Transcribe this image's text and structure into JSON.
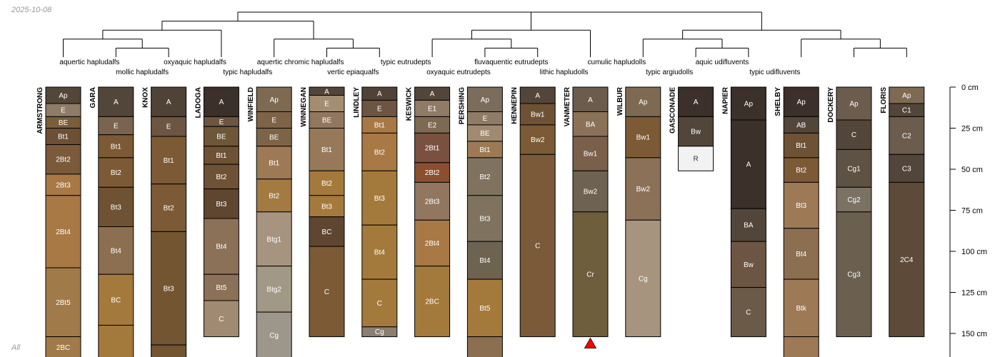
{
  "date_stamp": "2025-10-08",
  "footer_note": "All",
  "depth_axis": {
    "max_cm": 165,
    "ticks": [
      0,
      25,
      50,
      75,
      100,
      125,
      150
    ],
    "unit_label": "cm"
  },
  "taxa": [
    {
      "label": "aquertic hapludalfs",
      "row": 1
    },
    {
      "label": "mollic hapludalfs",
      "row": 2
    },
    {
      "label": "oxyaquic hapludalfs",
      "row": 1
    },
    {
      "label": "typic hapludalfs",
      "row": 2
    },
    {
      "label": "aquertic chromic hapludalfs",
      "row": 1
    },
    {
      "label": "vertic epiaqualfs",
      "row": 2
    },
    {
      "label": "typic eutrudepts",
      "row": 1
    },
    {
      "label": "oxyaquic eutrudepts",
      "row": 2
    },
    {
      "label": "fluvaquentic eutrudepts",
      "row": 1
    },
    {
      "label": "lithic hapludolls",
      "row": 2
    },
    {
      "label": "cumulic hapludolls",
      "row": 1
    },
    {
      "label": "typic argiudolls",
      "row": 2
    },
    {
      "label": "aquic udifluvents",
      "row": 1
    },
    {
      "label": "typic udifluvents",
      "row": 2
    }
  ],
  "profiles": [
    {
      "name": "ARMSTRONG",
      "horizons": [
        {
          "name": "Ap",
          "top": 0,
          "bottom": 10,
          "color": "#534739"
        },
        {
          "name": "E",
          "top": 10,
          "bottom": 18,
          "color": "#8f7b66"
        },
        {
          "name": "BE",
          "top": 18,
          "bottom": 25,
          "color": "#7a5e3c"
        },
        {
          "name": "Bt1",
          "top": 25,
          "bottom": 35,
          "color": "#6c4f35"
        },
        {
          "name": "2Bt2",
          "top": 35,
          "bottom": 53,
          "color": "#7a5a3a"
        },
        {
          "name": "2Bt3",
          "top": 53,
          "bottom": 66,
          "color": "#a87845"
        },
        {
          "name": "2Bt4",
          "top": 66,
          "bottom": 110,
          "color": "#a87845"
        },
        {
          "name": "2Bt5",
          "top": 110,
          "bottom": 152,
          "color": "#a07a48"
        },
        {
          "name": "2BC",
          "top": 152,
          "bottom": 165,
          "color": "#a07a48"
        }
      ]
    },
    {
      "name": "GARA",
      "horizons": [
        {
          "name": "A",
          "top": 0,
          "bottom": 18,
          "color": "#52463a"
        },
        {
          "name": "E",
          "top": 18,
          "bottom": 29,
          "color": "#7a6450"
        },
        {
          "name": "Bt1",
          "top": 29,
          "bottom": 43,
          "color": "#7b5a35"
        },
        {
          "name": "Bt2",
          "top": 43,
          "bottom": 61,
          "color": "#7b5a35"
        },
        {
          "name": "Bt3",
          "top": 61,
          "bottom": 85,
          "color": "#6e5233"
        },
        {
          "name": "Bt4",
          "top": 85,
          "bottom": 114,
          "color": "#8c6f50"
        },
        {
          "name": "BC",
          "top": 114,
          "bottom": 145,
          "color": "#a47a3c"
        },
        {
          "name": "",
          "top": 145,
          "bottom": 165,
          "color": "#a47a3c"
        }
      ]
    },
    {
      "name": "KNOX",
      "horizons": [
        {
          "name": "A",
          "top": 0,
          "bottom": 18,
          "color": "#4f4338"
        },
        {
          "name": "E",
          "top": 18,
          "bottom": 30,
          "color": "#6c5542"
        },
        {
          "name": "Bt1",
          "top": 30,
          "bottom": 59,
          "color": "#7b5a35"
        },
        {
          "name": "Bt2",
          "top": 59,
          "bottom": 88,
          "color": "#7b5a35"
        },
        {
          "name": "Bt3",
          "top": 88,
          "bottom": 157,
          "color": "#735532"
        },
        {
          "name": "",
          "top": 157,
          "bottom": 165,
          "color": "#735532"
        }
      ]
    },
    {
      "name": "LADOGA",
      "horizons": [
        {
          "name": "A",
          "top": 0,
          "bottom": 18,
          "color": "#3b302a"
        },
        {
          "name": "E",
          "top": 18,
          "bottom": 24,
          "color": "#6c5542"
        },
        {
          "name": "BE",
          "top": 24,
          "bottom": 36,
          "color": "#6e5638"
        },
        {
          "name": "Bt1",
          "top": 36,
          "bottom": 47,
          "color": "#6e5235"
        },
        {
          "name": "Bt2",
          "top": 47,
          "bottom": 62,
          "color": "#6e5235"
        },
        {
          "name": "Bt3",
          "top": 62,
          "bottom": 80,
          "color": "#5e4630"
        },
        {
          "name": "Bt4",
          "top": 80,
          "bottom": 114,
          "color": "#8a7158"
        },
        {
          "name": "Bt5",
          "top": 114,
          "bottom": 130,
          "color": "#8a7158"
        },
        {
          "name": "C",
          "top": 130,
          "bottom": 152,
          "color": "#a08b72"
        }
      ]
    },
    {
      "name": "WINFIELD",
      "horizons": [
        {
          "name": "Ap",
          "top": 0,
          "bottom": 15,
          "color": "#7e6a52"
        },
        {
          "name": "E",
          "top": 15,
          "bottom": 25,
          "color": "#7e6446"
        },
        {
          "name": "BE",
          "top": 25,
          "bottom": 36,
          "color": "#7e6446"
        },
        {
          "name": "Bt1",
          "top": 36,
          "bottom": 56,
          "color": "#9d7a55"
        },
        {
          "name": "Bt2",
          "top": 56,
          "bottom": 76,
          "color": "#a27a42"
        },
        {
          "name": "Btg1",
          "top": 76,
          "bottom": 109,
          "color": "#a6947f"
        },
        {
          "name": "Btg2",
          "top": 109,
          "bottom": 137,
          "color": "#a29886"
        },
        {
          "name": "Cg",
          "top": 137,
          "bottom": 165,
          "color": "#9d968a"
        }
      ]
    },
    {
      "name": "WINNEGAN",
      "horizons": [
        {
          "name": "A",
          "top": 0,
          "bottom": 5,
          "color": "#52463a"
        },
        {
          "name": "E",
          "top": 5,
          "bottom": 15,
          "color": "#a38e71"
        },
        {
          "name": "BE",
          "top": 15,
          "bottom": 25,
          "color": "#917760"
        },
        {
          "name": "Bt1",
          "top": 25,
          "bottom": 51,
          "color": "#977959"
        },
        {
          "name": "Bt2",
          "top": 51,
          "bottom": 66,
          "color": "#a47a3c"
        },
        {
          "name": "Bt3",
          "top": 66,
          "bottom": 79,
          "color": "#a47a3c"
        },
        {
          "name": "BC",
          "top": 79,
          "bottom": 97,
          "color": "#5e4630"
        },
        {
          "name": "C",
          "top": 97,
          "bottom": 152,
          "color": "#7b5a35"
        }
      ]
    },
    {
      "name": "LINDLEY",
      "horizons": [
        {
          "name": "A",
          "top": 0,
          "bottom": 8,
          "color": "#4f4338"
        },
        {
          "name": "E",
          "top": 8,
          "bottom": 18,
          "color": "#6c5542"
        },
        {
          "name": "Bt1",
          "top": 18,
          "bottom": 28,
          "color": "#a87845"
        },
        {
          "name": "Bt2",
          "top": 28,
          "bottom": 51,
          "color": "#a87845"
        },
        {
          "name": "Bt3",
          "top": 51,
          "bottom": 84,
          "color": "#a47a3c"
        },
        {
          "name": "Bt4",
          "top": 84,
          "bottom": 117,
          "color": "#a47a3c"
        },
        {
          "name": "C",
          "top": 117,
          "bottom": 146,
          "color": "#a47a3c"
        },
        {
          "name": "Cg",
          "top": 146,
          "bottom": 152,
          "color": "#8c7e70"
        }
      ]
    },
    {
      "name": "KESWICK",
      "horizons": [
        {
          "name": "A",
          "top": 0,
          "bottom": 8,
          "color": "#52463a"
        },
        {
          "name": "E1",
          "top": 8,
          "bottom": 18,
          "color": "#8f7b66"
        },
        {
          "name": "E2",
          "top": 18,
          "bottom": 28,
          "color": "#7e6a52"
        },
        {
          "name": "2Bt1",
          "top": 28,
          "bottom": 46,
          "color": "#7a5040"
        },
        {
          "name": "2Bt2",
          "top": 46,
          "bottom": 58,
          "color": "#8b4e2e"
        },
        {
          "name": "2Bt3",
          "top": 58,
          "bottom": 81,
          "color": "#917760"
        },
        {
          "name": "2Bt4",
          "top": 81,
          "bottom": 109,
          "color": "#a87845"
        },
        {
          "name": "2BC",
          "top": 109,
          "bottom": 152,
          "color": "#a47a3c"
        }
      ]
    },
    {
      "name": "PERSHING",
      "horizons": [
        {
          "name": "Ap",
          "top": 0,
          "bottom": 15,
          "color": "#7b6c5c"
        },
        {
          "name": "E",
          "top": 15,
          "bottom": 23,
          "color": "#8f7b66"
        },
        {
          "name": "BE",
          "top": 23,
          "bottom": 33,
          "color": "#a08b72"
        },
        {
          "name": "Bt1",
          "top": 33,
          "bottom": 43,
          "color": "#9d7a55"
        },
        {
          "name": "Bt2",
          "top": 43,
          "bottom": 66,
          "color": "#7f7360"
        },
        {
          "name": "Bt3",
          "top": 66,
          "bottom": 94,
          "color": "#7f7360"
        },
        {
          "name": "Bt4",
          "top": 94,
          "bottom": 117,
          "color": "#6e6250"
        },
        {
          "name": "Bt5",
          "top": 117,
          "bottom": 152,
          "color": "#a47a3c"
        },
        {
          "name": "",
          "top": 152,
          "bottom": 165,
          "color": "#8c6f50"
        }
      ]
    },
    {
      "name": "HENNEPIN",
      "horizons": [
        {
          "name": "A",
          "top": 0,
          "bottom": 10,
          "color": "#52463a"
        },
        {
          "name": "Bw1",
          "top": 10,
          "bottom": 23,
          "color": "#6e5235"
        },
        {
          "name": "Bw2",
          "top": 23,
          "bottom": 41,
          "color": "#7b5a35"
        },
        {
          "name": "C",
          "top": 41,
          "bottom": 152,
          "color": "#7b5a3a"
        }
      ]
    },
    {
      "name": "VANMETER",
      "horizons": [
        {
          "name": "A",
          "top": 0,
          "bottom": 15,
          "color": "#6b5c4d"
        },
        {
          "name": "BA",
          "top": 15,
          "bottom": 30,
          "color": "#8a7158"
        },
        {
          "name": "Bw1",
          "top": 30,
          "bottom": 51,
          "color": "#7a5f4b"
        },
        {
          "name": "Bw2",
          "top": 51,
          "bottom": 76,
          "color": "#6e6250"
        },
        {
          "name": "Cr",
          "top": 76,
          "bottom": 152,
          "color": "#6e5e3c"
        }
      ]
    },
    {
      "name": "WILBUR",
      "horizons": [
        {
          "name": "Ap",
          "top": 0,
          "bottom": 18,
          "color": "#7e6a52"
        },
        {
          "name": "Bw1",
          "top": 18,
          "bottom": 43,
          "color": "#7b5a35"
        },
        {
          "name": "Bw2",
          "top": 43,
          "bottom": 81,
          "color": "#8c7159"
        },
        {
          "name": "Cg",
          "top": 81,
          "bottom": 152,
          "color": "#a6947f"
        }
      ]
    },
    {
      "name": "GASCONADE",
      "horizons": [
        {
          "name": "A",
          "top": 0,
          "bottom": 18,
          "color": "#3b302a"
        },
        {
          "name": "Bw",
          "top": 18,
          "bottom": 36,
          "color": "#52463a"
        },
        {
          "name": "R",
          "top": 36,
          "bottom": 51,
          "color": "#f2f2f2"
        }
      ]
    },
    {
      "name": "NAPIER",
      "horizons": [
        {
          "name": "Ap",
          "top": 0,
          "bottom": 20,
          "color": "#3b302a"
        },
        {
          "name": "A",
          "top": 20,
          "bottom": 74,
          "color": "#3b302a"
        },
        {
          "name": "BA",
          "top": 74,
          "bottom": 94,
          "color": "#52463a"
        },
        {
          "name": "Bw",
          "top": 94,
          "bottom": 122,
          "color": "#6c5542"
        },
        {
          "name": "C",
          "top": 122,
          "bottom": 152,
          "color": "#6b5a48"
        }
      ]
    },
    {
      "name": "SHELBY",
      "horizons": [
        {
          "name": "Ap",
          "top": 0,
          "bottom": 18,
          "color": "#3b302a"
        },
        {
          "name": "AB",
          "top": 18,
          "bottom": 28,
          "color": "#52463a"
        },
        {
          "name": "Bt1",
          "top": 28,
          "bottom": 43,
          "color": "#6e5235"
        },
        {
          "name": "Bt2",
          "top": 43,
          "bottom": 58,
          "color": "#7b5a35"
        },
        {
          "name": "Bt3",
          "top": 58,
          "bottom": 86,
          "color": "#9d7a55"
        },
        {
          "name": "Bt4",
          "top": 86,
          "bottom": 117,
          "color": "#8c6f50"
        },
        {
          "name": "Btk",
          "top": 117,
          "bottom": 152,
          "color": "#9d7a55"
        },
        {
          "name": "",
          "top": 152,
          "bottom": 165,
          "color": "#9d7a55"
        }
      ]
    },
    {
      "name": "DOCKERY",
      "horizons": [
        {
          "name": "Ap",
          "top": 0,
          "bottom": 20,
          "color": "#6b5c4d"
        },
        {
          "name": "C",
          "top": 20,
          "bottom": 38,
          "color": "#52463a"
        },
        {
          "name": "Cg1",
          "top": 38,
          "bottom": 61,
          "color": "#5e5244"
        },
        {
          "name": "Cg2",
          "top": 61,
          "bottom": 76,
          "color": "#7b7264"
        },
        {
          "name": "Cg3",
          "top": 76,
          "bottom": 152,
          "color": "#6b6050"
        }
      ]
    },
    {
      "name": "FLORIS",
      "horizons": [
        {
          "name": "Ap",
          "top": 0,
          "bottom": 10,
          "color": "#7e6a52"
        },
        {
          "name": "C1",
          "top": 10,
          "bottom": 18,
          "color": "#52463a"
        },
        {
          "name": "C2",
          "top": 18,
          "bottom": 41,
          "color": "#6b5c4d"
        },
        {
          "name": "C3",
          "top": 41,
          "bottom": 58,
          "color": "#52463a"
        },
        {
          "name": "2C4",
          "top": 58,
          "bottom": 152,
          "color": "#5e4a38"
        }
      ]
    }
  ],
  "marker_profile": "VANMETER",
  "colors": {
    "line": "#000000",
    "marker_fill": "#ff0000",
    "text_dark": "#000000",
    "horizon_label": "#ffffff",
    "horizon_label_light": "#333333"
  }
}
